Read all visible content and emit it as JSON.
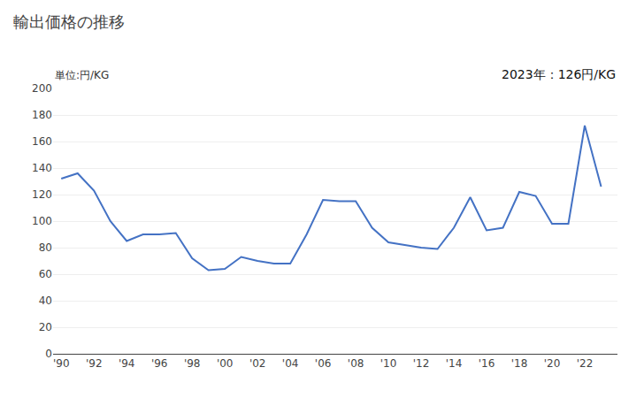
{
  "chart_data": {
    "type": "line",
    "title": "輸出価格の推移",
    "ylabel": "単位:円/KG",
    "annotations": [
      "2023年：126円/KG"
    ],
    "x": [
      1990,
      1991,
      1992,
      1993,
      1994,
      1995,
      1996,
      1997,
      1998,
      1999,
      2000,
      2001,
      2002,
      2003,
      2004,
      2005,
      2006,
      2007,
      2008,
      2009,
      2010,
      2011,
      2012,
      2013,
      2014,
      2015,
      2016,
      2017,
      2018,
      2019,
      2020,
      2021,
      2022,
      2023
    ],
    "values": [
      132,
      136,
      123,
      100,
      85,
      90,
      90,
      91,
      72,
      63,
      64,
      73,
      70,
      68,
      68,
      90,
      116,
      115,
      115,
      95,
      84,
      82,
      80,
      79,
      95,
      118,
      93,
      95,
      122,
      119,
      98,
      98,
      172,
      126
    ],
    "color": "#4472C4",
    "xlim": [
      1989.5,
      2024.0
    ],
    "xticks": [
      {
        "value": 1990,
        "label": "'90"
      },
      {
        "value": 1992,
        "label": "'92"
      },
      {
        "value": 1994,
        "label": "'94"
      },
      {
        "value": 1996,
        "label": "'96"
      },
      {
        "value": 1998,
        "label": "'98"
      },
      {
        "value": 2000,
        "label": "'00"
      },
      {
        "value": 2002,
        "label": "'02"
      },
      {
        "value": 2004,
        "label": "'04"
      },
      {
        "value": 2006,
        "label": "'06"
      },
      {
        "value": 2008,
        "label": "'08"
      },
      {
        "value": 2010,
        "label": "'10"
      },
      {
        "value": 2012,
        "label": "'12"
      },
      {
        "value": 2014,
        "label": "'14"
      },
      {
        "value": 2016,
        "label": "'16"
      },
      {
        "value": 2018,
        "label": "'18"
      },
      {
        "value": 2020,
        "label": "'20"
      },
      {
        "value": 2022,
        "label": "'22"
      }
    ],
    "ylim": [
      0,
      200
    ],
    "yticks": [
      0,
      20,
      40,
      60,
      80,
      100,
      120,
      140,
      160,
      180,
      200
    ],
    "grid": "y"
  }
}
